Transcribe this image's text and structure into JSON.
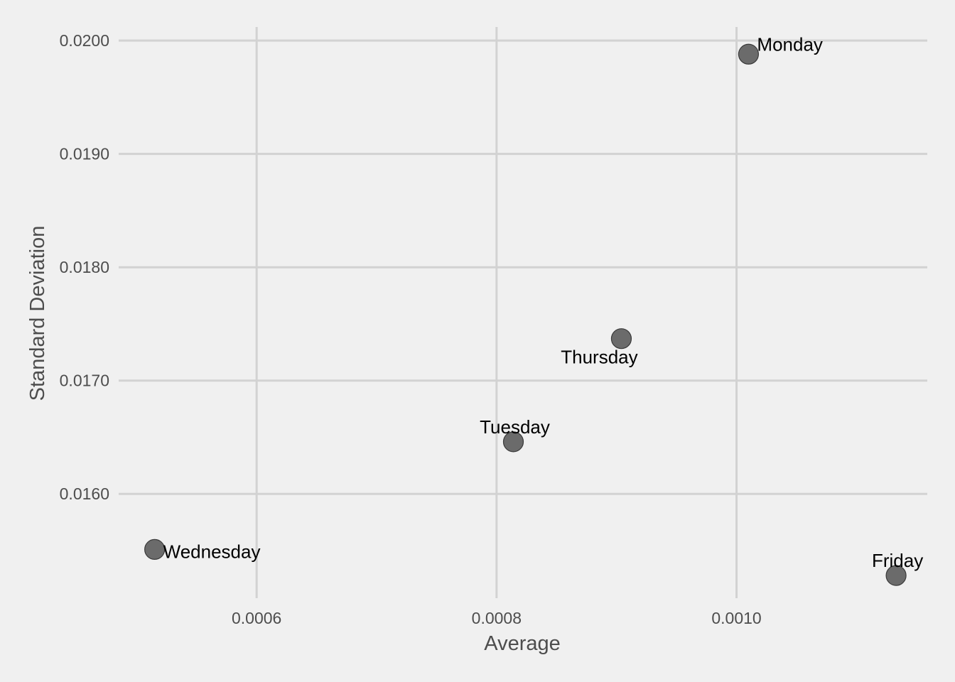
{
  "chart_data": {
    "type": "scatter",
    "title": "",
    "xlabel": "Average",
    "ylabel": "Standard Deviation",
    "x_ticks": [
      {
        "value": 0.0006,
        "label": "0.0006"
      },
      {
        "value": 0.0008,
        "label": "0.0008"
      },
      {
        "value": 0.001,
        "label": "0.0010"
      }
    ],
    "y_ticks": [
      {
        "value": 0.016,
        "label": "0.0160"
      },
      {
        "value": 0.017,
        "label": "0.0170"
      },
      {
        "value": 0.018,
        "label": "0.0180"
      },
      {
        "value": 0.019,
        "label": "0.0190"
      },
      {
        "value": 0.02,
        "label": "0.0200"
      }
    ],
    "xlim": [
      0.000485,
      0.001159
    ],
    "ylim": [
      0.01508,
      0.02012
    ],
    "grid": true,
    "legend": "none",
    "points": [
      {
        "label": "Monday",
        "x": 0.00101,
        "y": 0.01988,
        "label_position": "right-above"
      },
      {
        "label": "Tuesday",
        "x": 0.000814,
        "y": 0.01646,
        "label_position": "above"
      },
      {
        "label": "Wednesday",
        "x": 0.000515,
        "y": 0.01551,
        "label_position": "right"
      },
      {
        "label": "Thursday",
        "x": 0.000904,
        "y": 0.01737,
        "label_position": "below-left"
      },
      {
        "label": "Friday",
        "x": 0.001133,
        "y": 0.01528,
        "label_position": "above"
      }
    ],
    "colors": {
      "background": "#f0f0f0",
      "grid": "#d2d2d2",
      "point_fill": "#6b6b6b",
      "point_stroke": "#3a3a3a"
    }
  }
}
